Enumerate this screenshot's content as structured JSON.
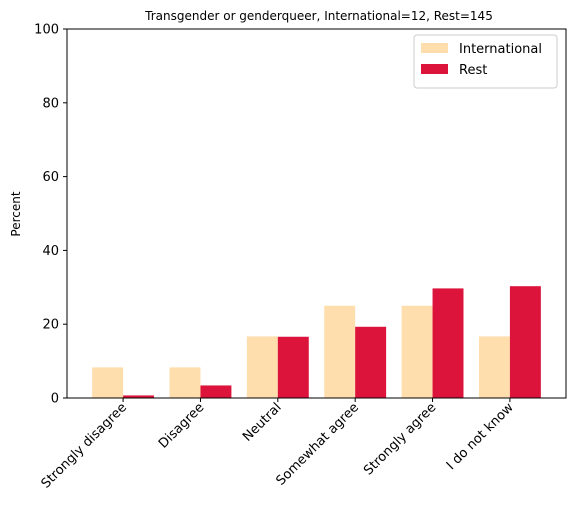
{
  "chart_data": {
    "type": "bar",
    "title": "Transgender or genderqueer, International=12, Rest=145",
    "xlabel": "",
    "ylabel": "Percent",
    "ylim": [
      0,
      100
    ],
    "yticks": [
      0,
      20,
      40,
      60,
      80,
      100
    ],
    "categories": [
      "Strongly disagree",
      "Disagree",
      "Neutral",
      "Somewhat agree",
      "Strongly agree",
      "I do not know"
    ],
    "series": [
      {
        "name": "International",
        "color": "#ffdead",
        "values": [
          8.3,
          8.3,
          16.7,
          25.0,
          25.0,
          16.7
        ]
      },
      {
        "name": "Rest",
        "color": "#dc143c",
        "values": [
          0.7,
          3.4,
          16.6,
          19.3,
          29.7,
          30.3
        ]
      }
    ],
    "grid": false,
    "legend": "top-right"
  }
}
